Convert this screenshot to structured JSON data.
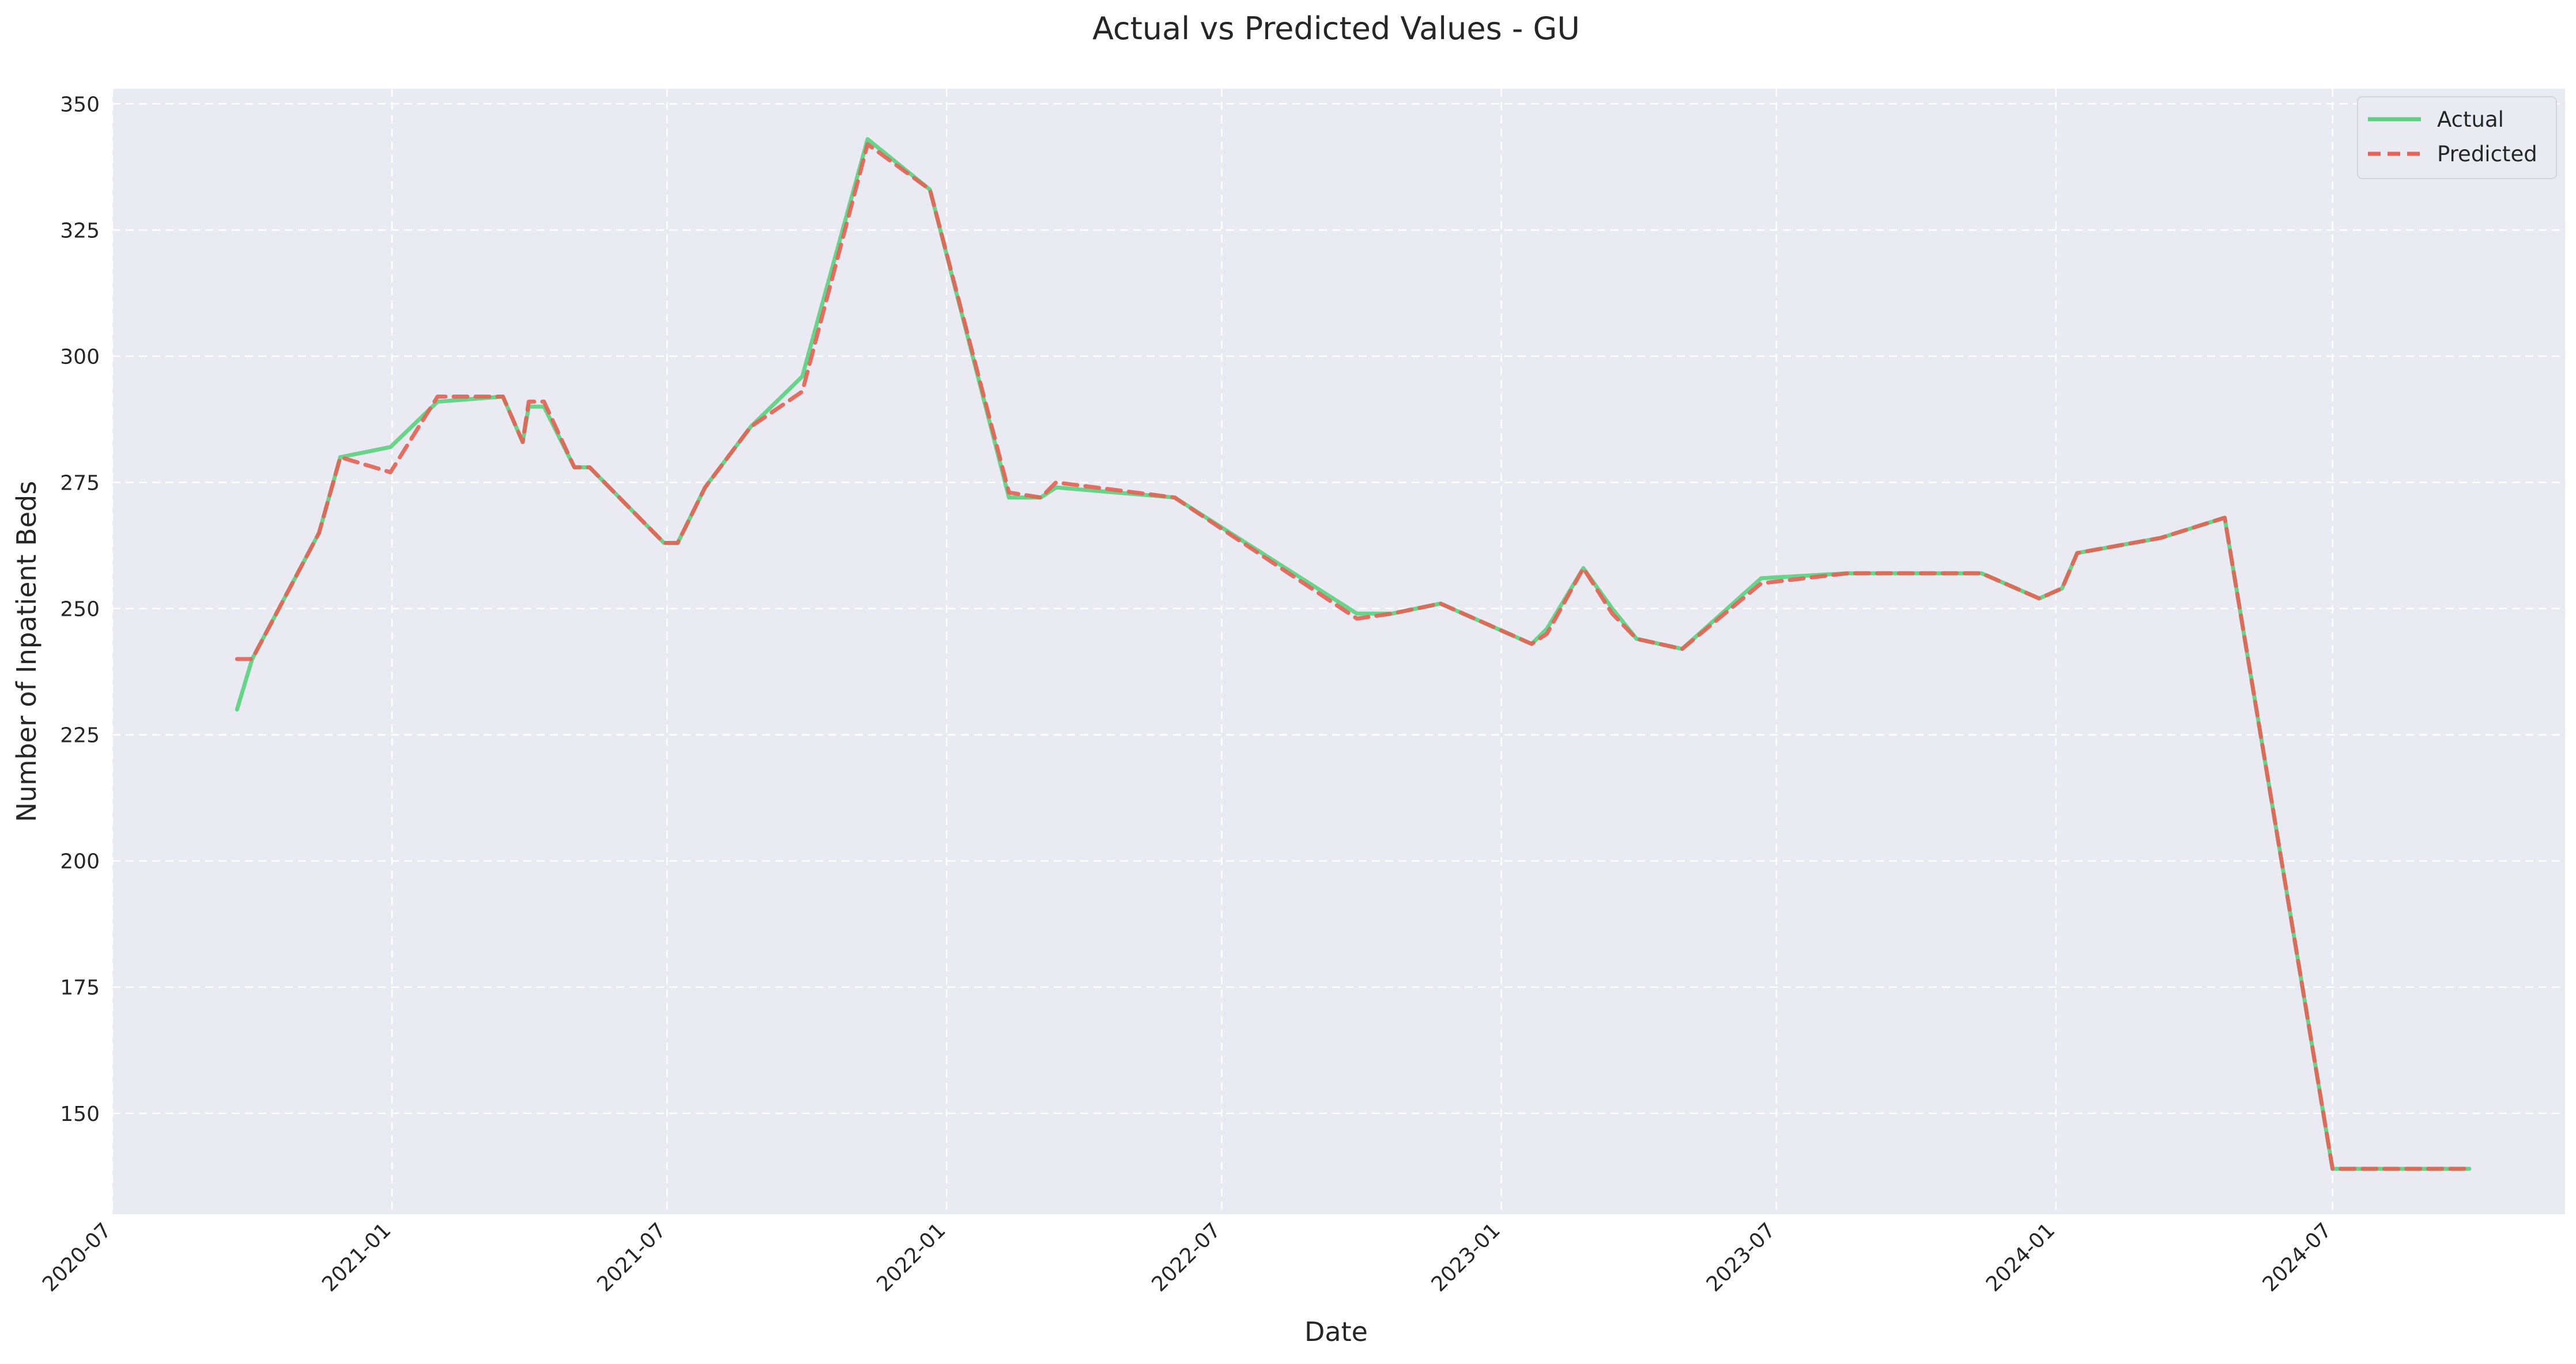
{
  "chart_data": {
    "type": "line",
    "title": "Actual vs Predicted Values - GU",
    "xlabel": "Date",
    "ylabel": "Number of Inpatient Beds",
    "xlim": [
      "2020-07-01",
      "2024-12-01"
    ],
    "ylim": [
      130,
      353
    ],
    "x_ticks": [
      "2020-07",
      "2021-01",
      "2021-07",
      "2022-01",
      "2022-07",
      "2023-01",
      "2023-07",
      "2024-01",
      "2024-07"
    ],
    "y_ticks": [
      150,
      175,
      200,
      225,
      250,
      275,
      300,
      325,
      350
    ],
    "grid": true,
    "grid_style": "dashed",
    "legend_position": "top-right",
    "series": [
      {
        "name": "Actual",
        "color": "#5cd080",
        "style": "solid",
        "points": [
          [
            "2020-09-21",
            230
          ],
          [
            "2020-10-01",
            240
          ],
          [
            "2020-11-14",
            265
          ],
          [
            "2020-11-28",
            280
          ],
          [
            "2020-12-31",
            282
          ],
          [
            "2021-01-31",
            291
          ],
          [
            "2021-03-15",
            292
          ],
          [
            "2021-03-28",
            283
          ],
          [
            "2021-04-01",
            290
          ],
          [
            "2021-04-11",
            290
          ],
          [
            "2021-05-01",
            278
          ],
          [
            "2021-05-11",
            278
          ],
          [
            "2021-06-29",
            263
          ],
          [
            "2021-07-08",
            263
          ],
          [
            "2021-07-26",
            274
          ],
          [
            "2021-08-25",
            286
          ],
          [
            "2021-09-28",
            296
          ],
          [
            "2021-11-10",
            343
          ],
          [
            "2021-12-21",
            333
          ],
          [
            "2022-02-11",
            272
          ],
          [
            "2022-03-04",
            272
          ],
          [
            "2022-03-14",
            274
          ],
          [
            "2022-05-31",
            272
          ],
          [
            "2022-09-28",
            249
          ],
          [
            "2022-10-21",
            249
          ],
          [
            "2022-11-22",
            251
          ],
          [
            "2023-01-21",
            243
          ],
          [
            "2023-01-31",
            246
          ],
          [
            "2023-02-24",
            258
          ],
          [
            "2023-03-15",
            250
          ],
          [
            "2023-03-31",
            244
          ],
          [
            "2023-04-30",
            242
          ],
          [
            "2023-06-21",
            256
          ],
          [
            "2023-08-17",
            257
          ],
          [
            "2023-11-13",
            257
          ],
          [
            "2023-12-21",
            252
          ],
          [
            "2024-01-05",
            254
          ],
          [
            "2024-01-15",
            261
          ],
          [
            "2024-03-10",
            264
          ],
          [
            "2024-04-21",
            268
          ],
          [
            "2024-07-01",
            139
          ],
          [
            "2024-09-29",
            139
          ]
        ]
      },
      {
        "name": "Predicted",
        "color": "#e26458",
        "style": "dashed",
        "points": [
          [
            "2020-09-21",
            240
          ],
          [
            "2020-10-01",
            240
          ],
          [
            "2020-11-14",
            265
          ],
          [
            "2020-11-28",
            280
          ],
          [
            "2020-12-31",
            277
          ],
          [
            "2021-01-31",
            292
          ],
          [
            "2021-03-15",
            292
          ],
          [
            "2021-03-28",
            283
          ],
          [
            "2021-04-01",
            291
          ],
          [
            "2021-04-11",
            291
          ],
          [
            "2021-05-01",
            278
          ],
          [
            "2021-05-11",
            278
          ],
          [
            "2021-06-29",
            263
          ],
          [
            "2021-07-08",
            263
          ],
          [
            "2021-07-26",
            274
          ],
          [
            "2021-08-25",
            286
          ],
          [
            "2021-09-28",
            293
          ],
          [
            "2021-11-10",
            342
          ],
          [
            "2021-12-21",
            333
          ],
          [
            "2022-02-11",
            273
          ],
          [
            "2022-03-04",
            272
          ],
          [
            "2022-03-14",
            275
          ],
          [
            "2022-05-31",
            272
          ],
          [
            "2022-09-28",
            248
          ],
          [
            "2022-10-21",
            249
          ],
          [
            "2022-11-22",
            251
          ],
          [
            "2023-01-21",
            243
          ],
          [
            "2023-01-31",
            245
          ],
          [
            "2023-02-24",
            258
          ],
          [
            "2023-03-15",
            249
          ],
          [
            "2023-03-31",
            244
          ],
          [
            "2023-04-30",
            242
          ],
          [
            "2023-06-21",
            255
          ],
          [
            "2023-08-17",
            257
          ],
          [
            "2023-11-13",
            257
          ],
          [
            "2023-12-21",
            252
          ],
          [
            "2024-01-05",
            254
          ],
          [
            "2024-01-15",
            261
          ],
          [
            "2024-03-10",
            264
          ],
          [
            "2024-04-21",
            268
          ],
          [
            "2024-07-01",
            139
          ],
          [
            "2024-09-29",
            139
          ]
        ]
      }
    ]
  },
  "colors": {
    "plot_background": "#eaeaf2",
    "page_background": "#ffffff",
    "grid": "#ffffff",
    "text": "#262626"
  }
}
